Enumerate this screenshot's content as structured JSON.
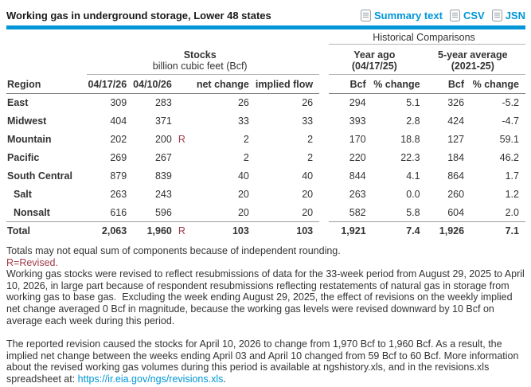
{
  "header": {
    "title": "Working gas in underground storage, Lower 48 states",
    "export_links": [
      {
        "label": "Summary text"
      },
      {
        "label": "CSV"
      },
      {
        "label": "JSN"
      }
    ]
  },
  "table": {
    "stocks_title": "Stocks",
    "stocks_subtitle": "billion cubic feet (Bcf)",
    "historical_title": "Historical Comparisons",
    "year_ago": {
      "line1": "Year ago",
      "line2": "(04/17/25)"
    },
    "five_year": {
      "line1": "5-year average",
      "line2": "(2021-25)"
    },
    "columns": {
      "region": "Region",
      "current": "04/17/26",
      "previous": "04/10/26",
      "net_change": "net change",
      "implied_flow": "implied flow",
      "bcf": "Bcf",
      "pct_change": "% change"
    },
    "rows": [
      {
        "region": "East",
        "cur": "309",
        "prev": "283",
        "rev": "",
        "net": "26",
        "flow": "26",
        "ya_bcf": "294",
        "ya_pct": "5.1",
        "fy_bcf": "326",
        "fy_pct": "-5.2",
        "indent": false,
        "total": false
      },
      {
        "region": "Midwest",
        "cur": "404",
        "prev": "371",
        "rev": "",
        "net": "33",
        "flow": "33",
        "ya_bcf": "393",
        "ya_pct": "2.8",
        "fy_bcf": "424",
        "fy_pct": "-4.7",
        "indent": false,
        "total": false
      },
      {
        "region": "Mountain",
        "cur": "202",
        "prev": "200",
        "rev": "R",
        "net": "2",
        "flow": "2",
        "ya_bcf": "170",
        "ya_pct": "18.8",
        "fy_bcf": "127",
        "fy_pct": "59.1",
        "indent": false,
        "total": false
      },
      {
        "region": "Pacific",
        "cur": "269",
        "prev": "267",
        "rev": "",
        "net": "2",
        "flow": "2",
        "ya_bcf": "220",
        "ya_pct": "22.3",
        "fy_bcf": "184",
        "fy_pct": "46.2",
        "indent": false,
        "total": false
      },
      {
        "region": "South Central",
        "cur": "879",
        "prev": "839",
        "rev": "",
        "net": "40",
        "flow": "40",
        "ya_bcf": "844",
        "ya_pct": "4.1",
        "fy_bcf": "864",
        "fy_pct": "1.7",
        "indent": false,
        "total": false
      },
      {
        "region": "Salt",
        "cur": "263",
        "prev": "243",
        "rev": "",
        "net": "20",
        "flow": "20",
        "ya_bcf": "263",
        "ya_pct": "0.0",
        "fy_bcf": "260",
        "fy_pct": "1.2",
        "indent": true,
        "total": false
      },
      {
        "region": "Nonsalt",
        "cur": "616",
        "prev": "596",
        "rev": "",
        "net": "20",
        "flow": "20",
        "ya_bcf": "582",
        "ya_pct": "5.8",
        "fy_bcf": "604",
        "fy_pct": "2.0",
        "indent": true,
        "total": false
      },
      {
        "region": "Total",
        "cur": "2,063",
        "prev": "1,960",
        "rev": "R",
        "net": "103",
        "flow": "103",
        "ya_bcf": "1,921",
        "ya_pct": "7.4",
        "fy_bcf": "1,926",
        "fy_pct": "7.1",
        "indent": false,
        "total": true
      }
    ]
  },
  "footnotes": {
    "rounding": "Totals may not equal sum of components because of independent rounding.",
    "revised_legend": "R=Revised.",
    "revision_details": "Working gas stocks were revised to reflect resubmissions of data for the 33-week period from August 29, 2025 to April 10, 2026, in large part because of respondent resubmissions reflecting restatements of natural gas in storage from working gas to base gas.  Excluding the week ending August 29, 2025, the effect of revisions on the weekly implied net change averaged 0 Bcf in magnitude, because the working gas levels were revised downward by 10 Bcf on average each week during this period.",
    "reported_revision": "The reported revision caused the stocks for April 10, 2026 to change from 1,970 Bcf to 1,960 Bcf. As a result, the implied net change between the weeks ending April 03 and April 10 changed from 59 Bcf to 60 Bcf. More information about the revised working gas volumes during this period is available at ngshistory.xls, and in the revisions.xls spreadsheet at: ",
    "revisions_link": "https://ir.eia.gov/ngs/revisions.xls",
    "link_suffix": "."
  },
  "colors": {
    "accent_blue": "#0096d7",
    "revised_red": "#a03c4a",
    "text": "#333333"
  }
}
